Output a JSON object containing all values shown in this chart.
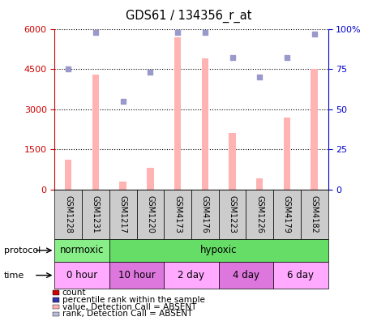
{
  "title": "GDS61 / 134356_r_at",
  "samples": [
    "GSM1228",
    "GSM1231",
    "GSM1217",
    "GSM1220",
    "GSM4173",
    "GSM4176",
    "GSM1223",
    "GSM1226",
    "GSM4179",
    "GSM4182"
  ],
  "bar_values": [
    1100,
    4300,
    300,
    800,
    5700,
    4900,
    2100,
    400,
    2700,
    4500
  ],
  "scatter_values": [
    75,
    98,
    55,
    73,
    98,
    98,
    82,
    70,
    82,
    97
  ],
  "ylim_left": [
    0,
    6000
  ],
  "ylim_right": [
    0,
    100
  ],
  "yticks_left": [
    0,
    1500,
    3000,
    4500,
    6000
  ],
  "yticks_right": [
    0,
    25,
    50,
    75,
    100
  ],
  "ytick_labels_left": [
    "0",
    "1500",
    "3000",
    "4500",
    "6000"
  ],
  "ytick_labels_right": [
    "0",
    "25",
    "50",
    "75",
    "100%"
  ],
  "bar_color": "#FFB3B3",
  "scatter_color": "#9999CC",
  "bar_width": 0.25,
  "protocol_row": {
    "label": "protocol",
    "groups": [
      {
        "name": "normoxic",
        "span": [
          0,
          2
        ],
        "color": "#88EE88"
      },
      {
        "name": "hypoxic",
        "span": [
          2,
          10
        ],
        "color": "#66DD66"
      }
    ]
  },
  "time_row": {
    "label": "time",
    "groups": [
      {
        "name": "0 hour",
        "span": [
          0,
          2
        ],
        "color": "#FFAAFF"
      },
      {
        "name": "10 hour",
        "span": [
          2,
          4
        ],
        "color": "#DD77DD"
      },
      {
        "name": "2 day",
        "span": [
          4,
          6
        ],
        "color": "#FFAAFF"
      },
      {
        "name": "4 day",
        "span": [
          6,
          8
        ],
        "color": "#DD77DD"
      },
      {
        "name": "6 day",
        "span": [
          8,
          10
        ],
        "color": "#FFAAFF"
      }
    ]
  },
  "legend_items": [
    {
      "label": "count",
      "color": "#CC0000"
    },
    {
      "label": "percentile rank within the sample",
      "color": "#3333AA"
    },
    {
      "label": "value, Detection Call = ABSENT",
      "color": "#FFB3B3"
    },
    {
      "label": "rank, Detection Call = ABSENT",
      "color": "#BBBBDD"
    }
  ],
  "left_axis_color": "#CC0000",
  "right_axis_color": "#0000CC",
  "sample_box_color": "#CCCCCC",
  "fig_width": 4.65,
  "fig_height": 3.96,
  "dpi": 100
}
